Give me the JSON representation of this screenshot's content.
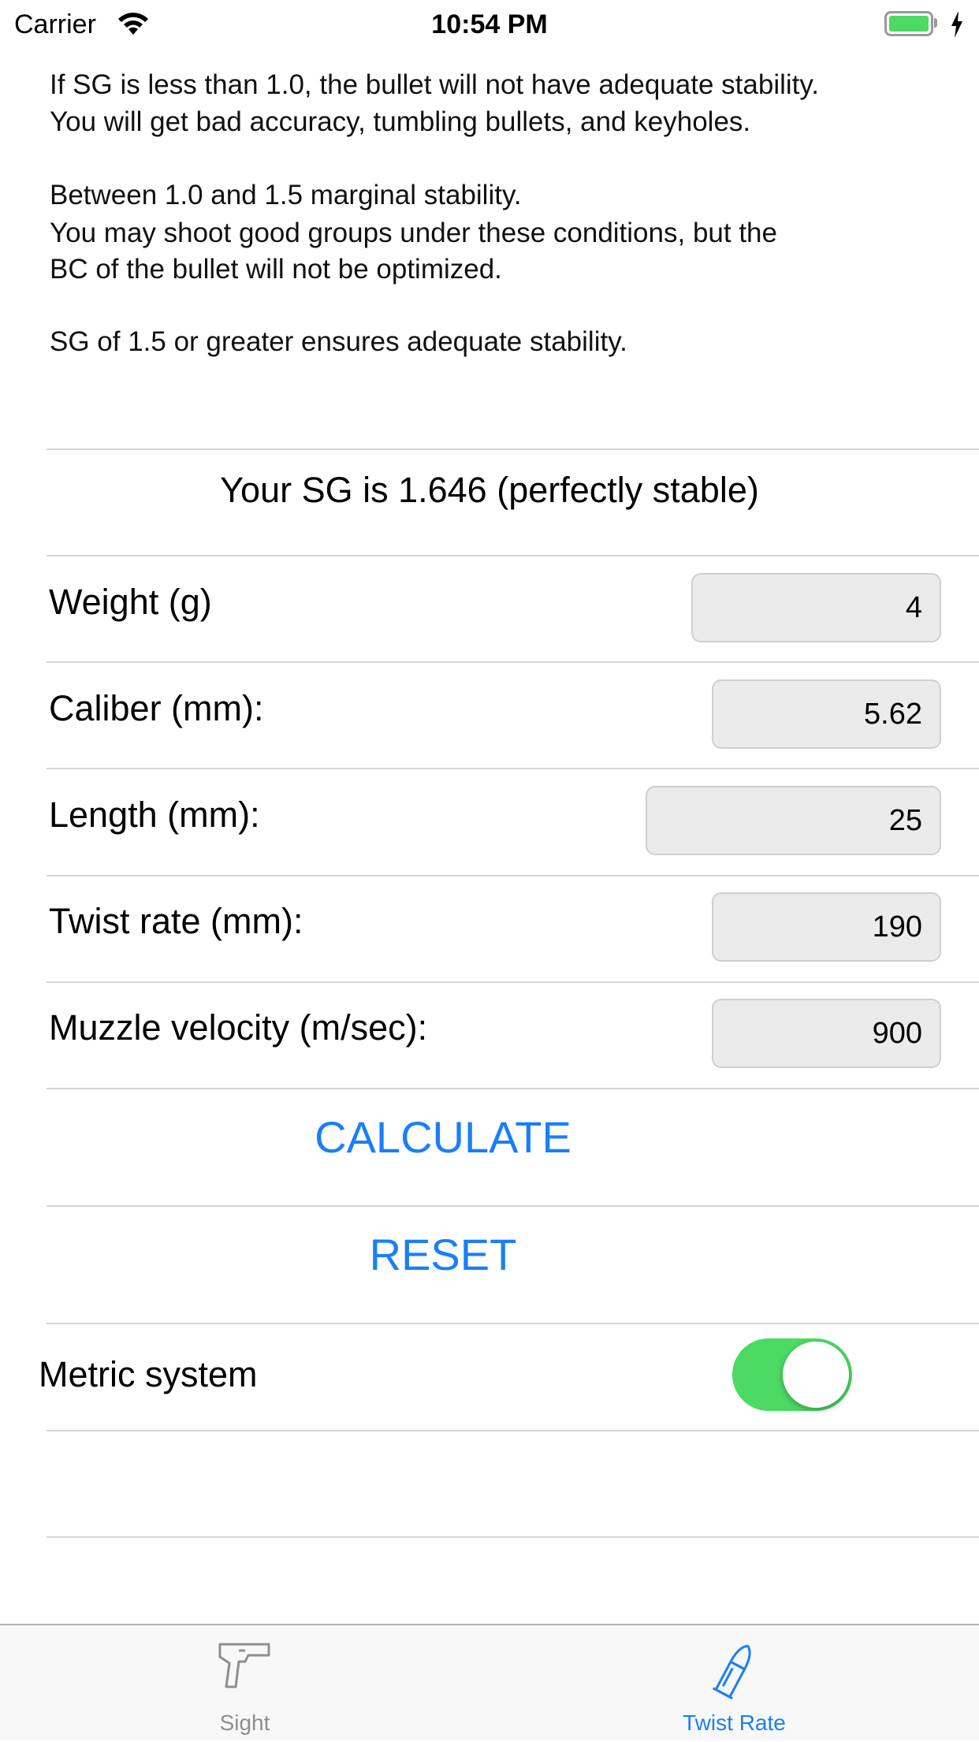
{
  "status_bar": {
    "carrier": "Carrier",
    "time": "10:54 PM",
    "battery_color": "#4cd964"
  },
  "info": {
    "p1": [
      "If SG is less than 1.0, the bullet will not have adequate stability.",
      "You will get bad accuracy, tumbling bullets, and keyholes."
    ],
    "p2": [
      "Between 1.0 and 1.5 marginal stability.",
      "You may shoot good groups under these conditions, but the",
      "BC of the bullet will not be optimized."
    ],
    "p3": [
      "SG of 1.5 or greater ensures adequate stability."
    ]
  },
  "result": "Your SG is 1.646 (perfectly stable)",
  "fields": [
    {
      "label": "Weight (g)",
      "value": "4"
    },
    {
      "label": "Caliber (mm):",
      "value": "5.62"
    },
    {
      "label": "Length (mm):",
      "value": "25"
    },
    {
      "label": "Twist rate (mm):",
      "value": "190"
    },
    {
      "label": "Muzzle velocity (m/sec):",
      "value": "900"
    }
  ],
  "buttons": {
    "calculate": "CALCULATE",
    "reset": "RESET"
  },
  "metric": {
    "label": "Metric system",
    "on": true
  },
  "tabs": [
    {
      "label": "Sight",
      "icon": "pistol-icon",
      "active": false
    },
    {
      "label": "Twist Rate",
      "icon": "bullet-icon",
      "active": true
    }
  ],
  "colors": {
    "accent": "#1a7ff7",
    "toggle_on": "#4cd964",
    "inactive_tab": "#8e8e8e"
  }
}
